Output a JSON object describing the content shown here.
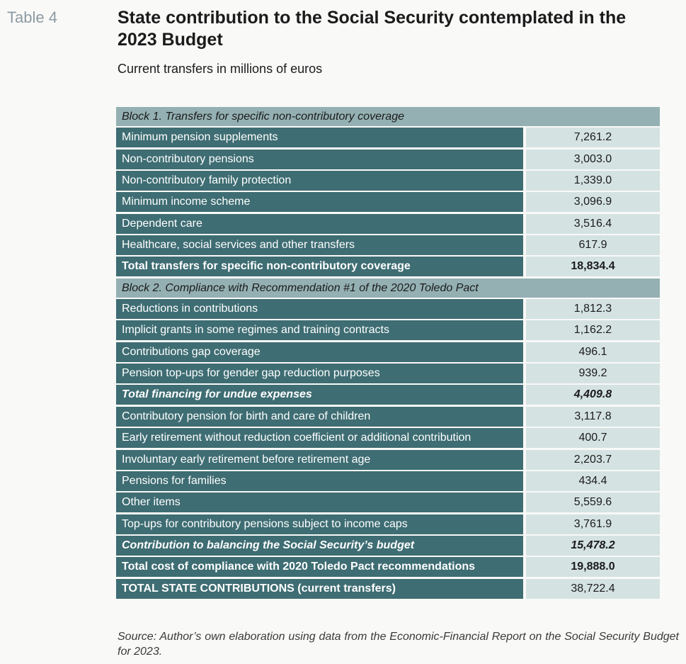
{
  "table_label": "Table 4",
  "title": "State contribution to the Social Security contemplated in the 2023 Budget",
  "subtitle": "Current transfers in millions of euros",
  "block1": {
    "heading": "Block 1. Transfers for specific non-contributory coverage",
    "rows": [
      {
        "label": "Minimum pension supplements",
        "value": "7,261.2"
      },
      {
        "label": "Non-contributory pensions",
        "value": "3,003.0"
      },
      {
        "label": "Non-contributory family protection",
        "value": "1,339.0"
      },
      {
        "label": "Minimum income scheme",
        "value": "3,096.9"
      },
      {
        "label": "Dependent care",
        "value": "3,516.4"
      },
      {
        "label": "Healthcare, social services and other transfers",
        "value": "617.9"
      },
      {
        "label": "Total transfers for specific non-contributory coverage",
        "value": "18,834.4"
      }
    ]
  },
  "block2": {
    "heading": "Block 2. Compliance with Recommendation #1 of the 2020 Toledo Pact",
    "rows": [
      {
        "label": "Reductions in contributions",
        "value": "1,812.3"
      },
      {
        "label": "Implicit grants in some regimes and training contracts",
        "value": "1,162.2"
      },
      {
        "label": "Contributions gap coverage",
        "value": "496.1"
      },
      {
        "label": "Pension top-ups for gender gap reduction purposes",
        "value": "939.2"
      },
      {
        "label": "Total financing for undue expenses",
        "value": "4,409.8"
      },
      {
        "label": "Contributory pension for birth and care of children",
        "value": "3,117.8"
      },
      {
        "label": "Early retirement without reduction coefficient or additional contribution",
        "value": "400.7"
      },
      {
        "label": "Involuntary early retirement before retirement age",
        "value": "2,203.7"
      },
      {
        "label": "Pensions for families",
        "value": "434.4"
      },
      {
        "label": "Other items",
        "value": "5,559.6"
      },
      {
        "label": "Top-ups for contributory pensions subject to income caps",
        "value": "3,761.9"
      },
      {
        "label": "Contribution to balancing the Social Security’s budget",
        "value": "15,478.2"
      },
      {
        "label": "Total cost of compliance with 2020 Toledo Pact recommendations",
        "value": "19,888.0"
      },
      {
        "label": "TOTAL STATE CONTRIBUTIONS (current transfers)",
        "value": "38,722.4"
      }
    ]
  },
  "source": "Source: Author’s own elaboration using data from the Economic-Financial Report on the Social Security Budget for 2023.",
  "colors": {
    "label_bg": "#3e6d73",
    "value_bg": "#d4e2e2",
    "block_bg": "#94b0b3",
    "table_label": "#8b9aa2"
  }
}
